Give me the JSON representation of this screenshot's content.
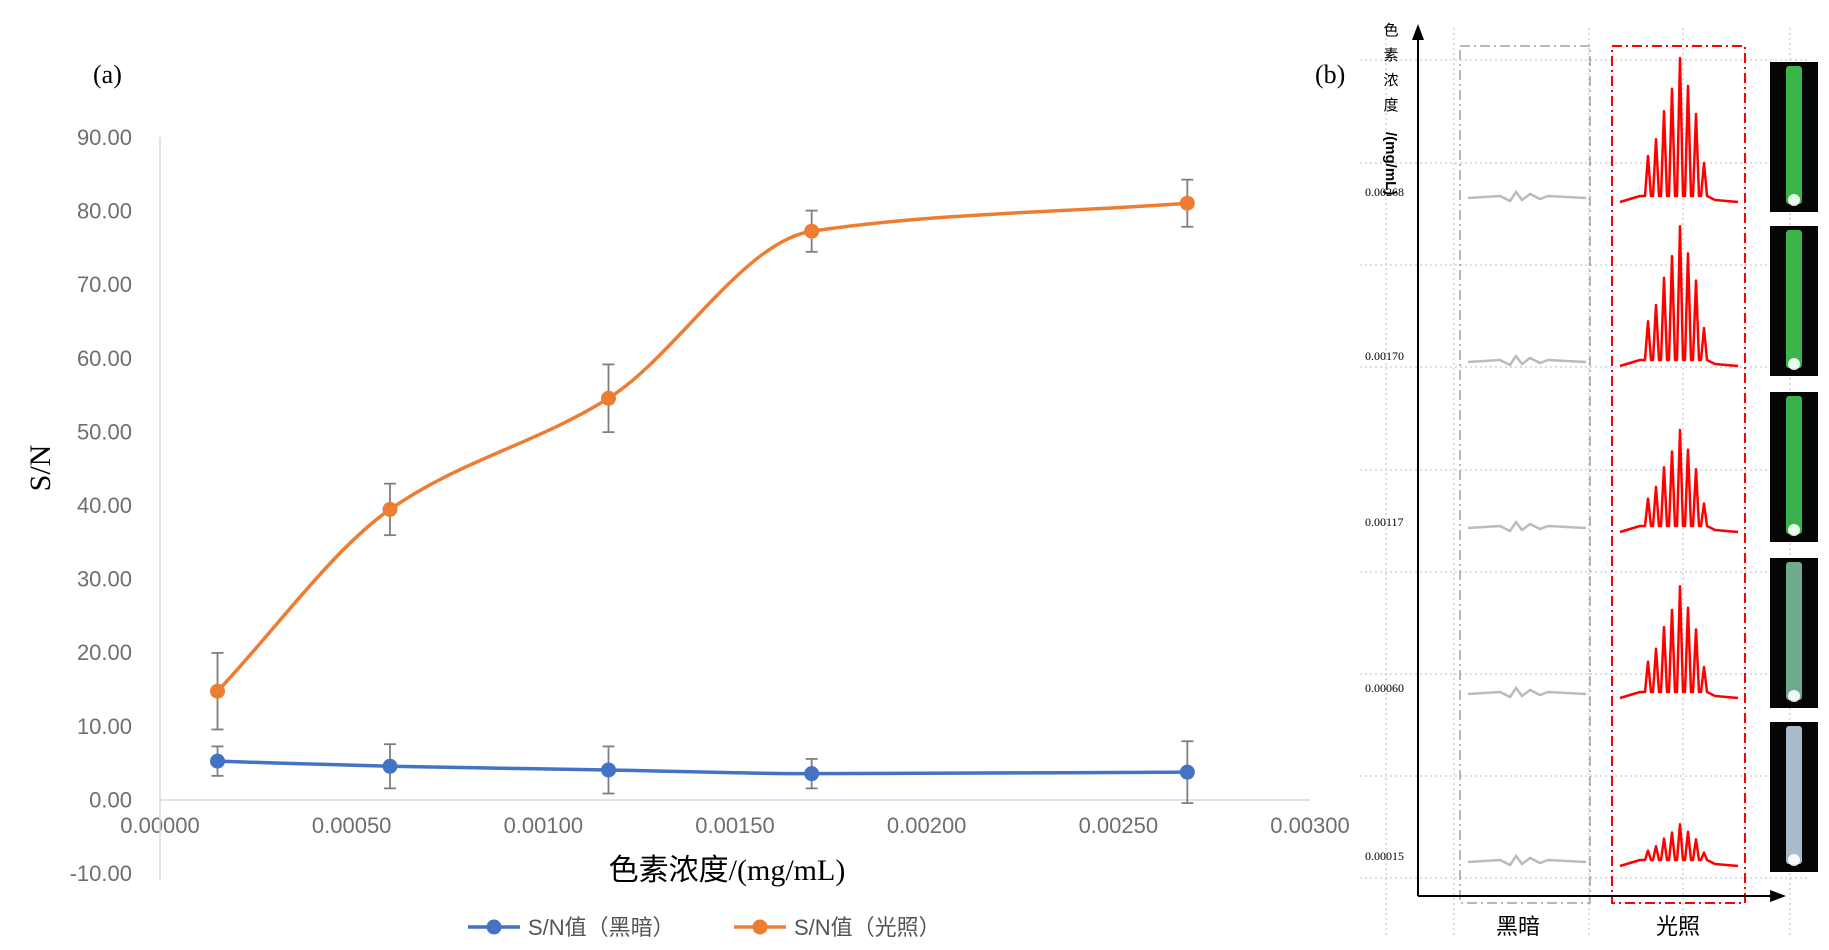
{
  "panel_a_label": "(a)",
  "panel_b_label": "(b)",
  "chart_data": [
    {
      "type": "line",
      "xlabel": "色素浓度/(mg/mL)",
      "ylabel": "S/N",
      "xlim": [
        0,
        0.003
      ],
      "ylim": [
        -10,
        90
      ],
      "x_ticks": [
        "0.00000",
        "0.00050",
        "0.00100",
        "0.00150",
        "0.00200",
        "0.00250",
        "0.00300"
      ],
      "y_ticks": [
        "-10.00",
        "0.00",
        "10.00",
        "20.00",
        "30.00",
        "40.00",
        "50.00",
        "60.00",
        "70.00",
        "80.00",
        "90.00"
      ],
      "grid": false,
      "legend_position": "bottom",
      "smoothed": true,
      "error_bars": true,
      "series": [
        {
          "name": "S/N值（黑暗）",
          "color": "#4472c4",
          "x": [
            0.00015,
            0.0006,
            0.00117,
            0.0017,
            0.00268
          ],
          "y": [
            5.2,
            4.5,
            4.0,
            3.5,
            3.7
          ],
          "error": [
            2.0,
            3.0,
            3.2,
            2.0,
            4.2
          ]
        },
        {
          "name": "S/N值（光照）",
          "color": "#ed7d31",
          "x": [
            0.00015,
            0.0006,
            0.00117,
            0.0017,
            0.00268
          ],
          "y": [
            14.7,
            39.4,
            54.5,
            77.2,
            81.0
          ],
          "error": [
            5.2,
            3.5,
            4.6,
            2.8,
            3.2
          ]
        }
      ]
    },
    {
      "type": "line",
      "ylabel_chars": [
        "色",
        "素",
        "浓",
        "度"
      ],
      "ylabel_rot": "/(mg/mL)",
      "row_labels": [
        "0.00268",
        "0.00170",
        "0.00117",
        "0.00060",
        "0.00015"
      ],
      "columns": [
        "黑暗",
        "光照"
      ],
      "dark_color": "#bbbbbb",
      "light_color": "#ff0000",
      "dark_box_color": "#a0a0a0",
      "light_box_color": "#ff0000",
      "tube_colors": [
        "#39b54a",
        "#3bb54a",
        "#38b24a",
        "#6faa8c",
        "#a9bccc"
      ]
    }
  ]
}
